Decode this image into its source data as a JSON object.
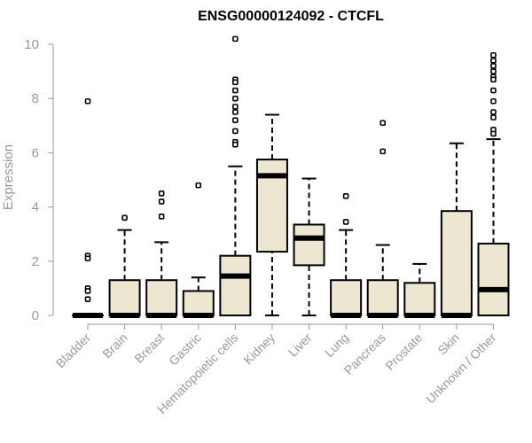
{
  "chart_data": {
    "type": "boxplot",
    "title": "ENSG00000124092 - CTCFL",
    "ylabel": "Expression",
    "xlabel": "",
    "ylim": [
      0,
      10
    ],
    "yticks": [
      0,
      2,
      4,
      6,
      8,
      10
    ],
    "grid": false,
    "colors": {
      "box_fill": "#ede6d0",
      "box_stroke": "#000000",
      "axis": "#999999",
      "text": "#999999"
    },
    "categories": [
      "Bladder",
      "Brain",
      "Breast",
      "Gastric",
      "Hematopoietic cells",
      "Kidney",
      "Liver",
      "Lung",
      "Pancreas",
      "Prostate",
      "Skin",
      "Unknown / Other"
    ],
    "boxes": [
      {
        "category": "Bladder",
        "min": 0,
        "q1": 0,
        "median": 0,
        "q3": 0,
        "max": 0,
        "outliers": [
          7.9,
          2.2,
          2.1,
          1.0,
          0.9,
          0.6
        ]
      },
      {
        "category": "Brain",
        "min": 0,
        "q1": 0,
        "median": 0,
        "q3": 1.3,
        "max": 3.15,
        "outliers": [
          3.6
        ]
      },
      {
        "category": "Breast",
        "min": 0,
        "q1": 0,
        "median": 0,
        "q3": 1.3,
        "max": 2.7,
        "outliers": [
          4.5,
          4.2,
          3.65
        ]
      },
      {
        "category": "Gastric",
        "min": 0,
        "q1": 0,
        "median": 0,
        "q3": 0.9,
        "max": 1.4,
        "outliers": [
          4.8
        ]
      },
      {
        "category": "Hematopoietic cells",
        "min": 0,
        "q1": 0,
        "median": 1.45,
        "q3": 2.2,
        "max": 5.5,
        "outliers": [
          10.2,
          8.7,
          8.6,
          8.3,
          8.0,
          7.7,
          7.5,
          7.2,
          6.8,
          6.4,
          6.3
        ]
      },
      {
        "category": "Kidney",
        "min": 0,
        "q1": 2.35,
        "median": 5.15,
        "q3": 5.75,
        "max": 7.4,
        "outliers": []
      },
      {
        "category": "Liver",
        "min": 0,
        "q1": 1.85,
        "median": 2.85,
        "q3": 3.35,
        "max": 5.05,
        "outliers": []
      },
      {
        "category": "Lung",
        "min": 0,
        "q1": 0,
        "median": 0,
        "q3": 1.3,
        "max": 3.15,
        "outliers": [
          4.4,
          3.45
        ]
      },
      {
        "category": "Pancreas",
        "min": 0,
        "q1": 0,
        "median": 0,
        "q3": 1.3,
        "max": 2.6,
        "outliers": [
          7.1,
          6.05
        ]
      },
      {
        "category": "Prostate",
        "min": 0,
        "q1": 0,
        "median": 0,
        "q3": 1.2,
        "max": 1.9,
        "outliers": []
      },
      {
        "category": "Skin",
        "min": 0,
        "q1": 0,
        "median": 0,
        "q3": 3.85,
        "max": 6.35,
        "outliers": []
      },
      {
        "category": "Unknown / Other",
        "min": 0,
        "q1": 0,
        "median": 0.95,
        "q3": 2.65,
        "max": 6.5,
        "outliers": [
          9.6,
          9.4,
          9.2,
          9.0,
          8.8,
          8.7,
          8.3,
          7.9,
          7.5,
          7.3,
          6.85,
          6.7
        ]
      }
    ]
  }
}
